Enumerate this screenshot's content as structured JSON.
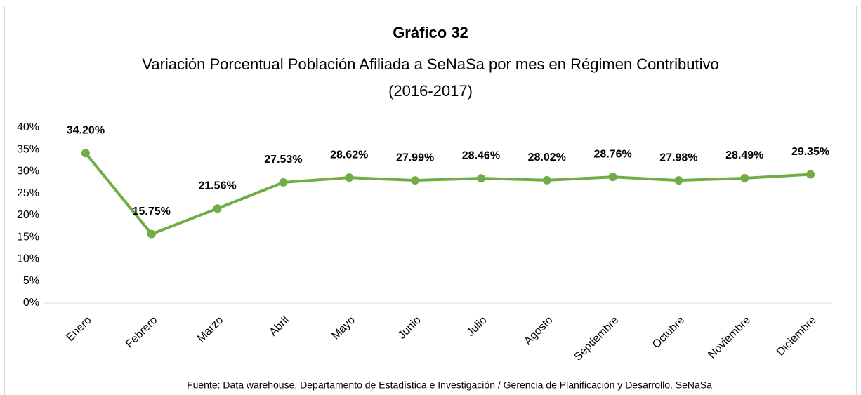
{
  "chart_data": {
    "type": "line",
    "title": "Gráfico 32",
    "subtitle": [
      "Variación Porcentual Población Afiliada a SeNaSa por mes en Régimen Contributivo",
      "(2016-2017)"
    ],
    "categories": [
      "Enero",
      "Febrero",
      "Marzo",
      "Abril",
      "Mayo",
      "Junio",
      "Julio",
      "Agosto",
      "Septiembre",
      "Octubre",
      "Noviembre",
      "Diciembre"
    ],
    "values": [
      34.2,
      15.75,
      21.56,
      27.53,
      28.62,
      27.99,
      28.46,
      28.02,
      28.76,
      27.98,
      28.49,
      29.35
    ],
    "value_labels": [
      "34.20%",
      "15.75%",
      "21.56%",
      "27.53%",
      "28.62%",
      "27.99%",
      "28.46%",
      "28.02%",
      "28.76%",
      "27.98%",
      "28.49%",
      "29.35%"
    ],
    "color": "#70ad47",
    "ylim": [
      0,
      40
    ],
    "yticks": [
      {
        "value": 0,
        "label": "0%"
      },
      {
        "value": 5,
        "label": "5%"
      },
      {
        "value": 10,
        "label": "10%"
      },
      {
        "value": 15,
        "label": "15%"
      },
      {
        "value": 20,
        "label": "20%"
      },
      {
        "value": 25,
        "label": "25%"
      },
      {
        "value": 30,
        "label": "30%"
      },
      {
        "value": 35,
        "label": "35%"
      },
      {
        "value": 40,
        "label": "40%"
      }
    ],
    "source": "Fuente: Data warehouse, Departamento de Estadística e Investigación / Gerencia de Planificación y Desarrollo. SeNaSa"
  }
}
